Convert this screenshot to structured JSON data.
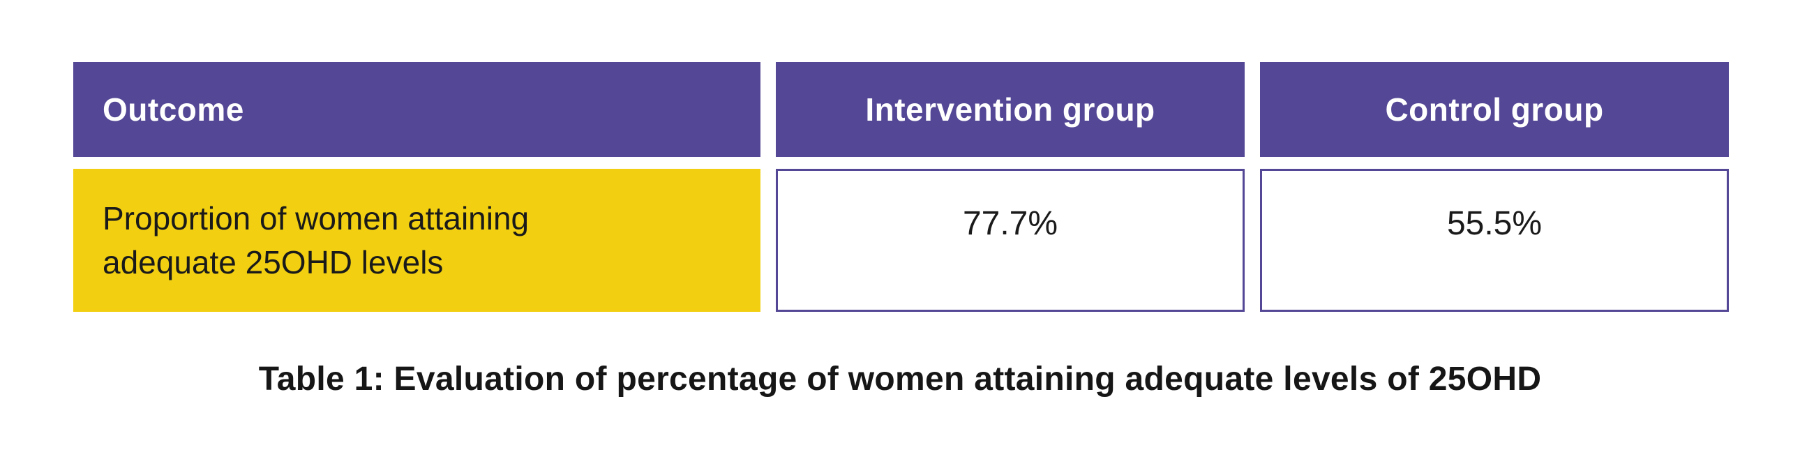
{
  "colors": {
    "header_bg": "#544795",
    "header_text": "#ffffff",
    "outcome_bg": "#f2d011",
    "cell_border": "#544795",
    "body_text": "#1a1a1a",
    "page_bg": "#ffffff"
  },
  "chart_data": {
    "type": "table",
    "title": "Table 1: Evaluation of percentage of women attaining adequate levels of 25OHD",
    "columns": [
      "Outcome",
      "Intervention group",
      "Control group"
    ],
    "rows": [
      {
        "outcome": "Proportion of women attaining adequate 25OHD levels",
        "intervention_group": "77.7%",
        "control_group": "55.5%"
      }
    ],
    "values_numeric": {
      "intervention_group_pct": 77.7,
      "control_group_pct": 55.5
    }
  },
  "table": {
    "headers": {
      "outcome": "Outcome",
      "intervention": "Intervention group",
      "control": "Control group"
    },
    "row": {
      "outcome_lines": [
        "Proportion of women attaining",
        "adequate 25OHD levels"
      ],
      "intervention_value": "77.7%",
      "control_value": "55.5%"
    }
  },
  "caption": "Table 1: Evaluation of percentage of women attaining adequate levels of 25OHD"
}
